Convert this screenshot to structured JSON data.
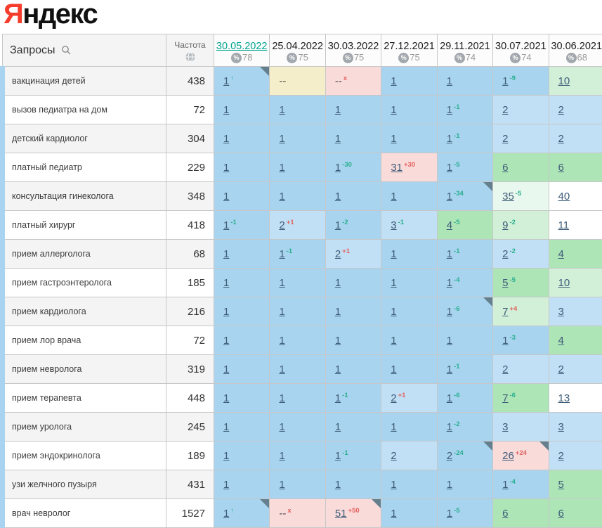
{
  "logo": {
    "part1": "Я",
    "part2": "ндекс"
  },
  "header": {
    "queries_label": "Запросы",
    "frequency_label": "Частота",
    "dates": [
      {
        "label": "30.05.2022",
        "coverage": "78",
        "active": true
      },
      {
        "label": "25.04.2022",
        "coverage": "75",
        "active": false
      },
      {
        "label": "30.03.2022",
        "coverage": "75",
        "active": false
      },
      {
        "label": "27.12.2021",
        "coverage": "75",
        "active": false
      },
      {
        "label": "29.11.2021",
        "coverage": "74",
        "active": false
      },
      {
        "label": "30.07.2021",
        "coverage": "74",
        "active": false
      },
      {
        "label": "30.06.2021",
        "coverage": "68",
        "active": false
      }
    ]
  },
  "colors": {
    "blue1": "#a9d4ef",
    "blue2": "#c1e0f5",
    "green1": "#aee5b7",
    "green2": "#d2f0d8",
    "mint": "#e9f8ee",
    "white": "#ffffff",
    "cream": "#f5eecb",
    "pink": "#f9dbda",
    "accent_teal": "#00a58e",
    "delta_up": "#2aaf8f",
    "delta_down": "#e2635f",
    "logo_red": "#f53d2d",
    "row_strip": "#a9d4f0"
  },
  "rows": [
    {
      "query": "вакцинация детей",
      "frequency": "438",
      "cells": [
        {
          "pos": "1",
          "delta": "↑",
          "dir": "up",
          "bg": "blue1",
          "marker": true
        },
        {
          "pos": "--",
          "bg": "cream"
        },
        {
          "pos": "--",
          "delta": "x",
          "dir": "down",
          "bg": "pink"
        },
        {
          "pos": "1",
          "bg": "blue1"
        },
        {
          "pos": "1",
          "bg": "blue1"
        },
        {
          "pos": "1",
          "delta": "-9",
          "dir": "up",
          "bg": "blue1"
        },
        {
          "pos": "10",
          "bg": "green2"
        }
      ]
    },
    {
      "query": "вызов педиатра на дом",
      "frequency": "72",
      "cells": [
        {
          "pos": "1",
          "bg": "blue1"
        },
        {
          "pos": "1",
          "bg": "blue1"
        },
        {
          "pos": "1",
          "bg": "blue1"
        },
        {
          "pos": "1",
          "bg": "blue1"
        },
        {
          "pos": "1",
          "delta": "-1",
          "dir": "up",
          "bg": "blue1"
        },
        {
          "pos": "2",
          "bg": "blue2"
        },
        {
          "pos": "2",
          "bg": "blue2"
        }
      ]
    },
    {
      "query": "детский кардиолог",
      "frequency": "304",
      "cells": [
        {
          "pos": "1",
          "bg": "blue1"
        },
        {
          "pos": "1",
          "bg": "blue1"
        },
        {
          "pos": "1",
          "bg": "blue1"
        },
        {
          "pos": "1",
          "bg": "blue1"
        },
        {
          "pos": "1",
          "delta": "-1",
          "dir": "up",
          "bg": "blue1"
        },
        {
          "pos": "2",
          "bg": "blue2"
        },
        {
          "pos": "2",
          "bg": "blue2"
        }
      ]
    },
    {
      "query": "платный педиатр",
      "frequency": "229",
      "cells": [
        {
          "pos": "1",
          "bg": "blue1"
        },
        {
          "pos": "1",
          "bg": "blue1"
        },
        {
          "pos": "1",
          "delta": "-30",
          "dir": "up",
          "bg": "blue1"
        },
        {
          "pos": "31",
          "delta": "+30",
          "dir": "down",
          "bg": "pink"
        },
        {
          "pos": "1",
          "delta": "-5",
          "dir": "up",
          "bg": "blue1"
        },
        {
          "pos": "6",
          "bg": "green1"
        },
        {
          "pos": "6",
          "bg": "green1"
        }
      ]
    },
    {
      "query": "консультация гинеколога",
      "frequency": "348",
      "cells": [
        {
          "pos": "1",
          "bg": "blue1"
        },
        {
          "pos": "1",
          "bg": "blue1"
        },
        {
          "pos": "1",
          "bg": "blue1"
        },
        {
          "pos": "1",
          "bg": "blue1"
        },
        {
          "pos": "1",
          "delta": "-34",
          "dir": "up",
          "bg": "blue1",
          "marker": true
        },
        {
          "pos": "35",
          "delta": "-5",
          "dir": "up",
          "bg": "mint"
        },
        {
          "pos": "40",
          "bg": "white"
        }
      ]
    },
    {
      "query": "платный хирург",
      "frequency": "418",
      "cells": [
        {
          "pos": "1",
          "delta": "-1",
          "dir": "up",
          "bg": "blue1"
        },
        {
          "pos": "2",
          "delta": "+1",
          "dir": "down",
          "bg": "blue2"
        },
        {
          "pos": "1",
          "delta": "-2",
          "dir": "up",
          "bg": "blue1"
        },
        {
          "pos": "3",
          "delta": "-1",
          "dir": "up",
          "bg": "blue2"
        },
        {
          "pos": "4",
          "delta": "-5",
          "dir": "up",
          "bg": "green1"
        },
        {
          "pos": "9",
          "delta": "-2",
          "dir": "up",
          "bg": "green2"
        },
        {
          "pos": "11",
          "bg": "white"
        }
      ]
    },
    {
      "query": "прием аллерголога",
      "frequency": "68",
      "cells": [
        {
          "pos": "1",
          "bg": "blue1"
        },
        {
          "pos": "1",
          "delta": "-1",
          "dir": "up",
          "bg": "blue1"
        },
        {
          "pos": "2",
          "delta": "+1",
          "dir": "down",
          "bg": "blue2"
        },
        {
          "pos": "1",
          "bg": "blue1"
        },
        {
          "pos": "1",
          "delta": "-1",
          "dir": "up",
          "bg": "blue1"
        },
        {
          "pos": "2",
          "delta": "-2",
          "dir": "up",
          "bg": "blue2"
        },
        {
          "pos": "4",
          "bg": "green1"
        }
      ]
    },
    {
      "query": "прием гастроэнтеролога",
      "frequency": "185",
      "cells": [
        {
          "pos": "1",
          "bg": "blue1"
        },
        {
          "pos": "1",
          "bg": "blue1"
        },
        {
          "pos": "1",
          "bg": "blue1"
        },
        {
          "pos": "1",
          "bg": "blue1"
        },
        {
          "pos": "1",
          "delta": "-4",
          "dir": "up",
          "bg": "blue1"
        },
        {
          "pos": "5",
          "delta": "-5",
          "dir": "up",
          "bg": "green1"
        },
        {
          "pos": "10",
          "bg": "green2"
        }
      ]
    },
    {
      "query": "прием кардиолога",
      "frequency": "216",
      "cells": [
        {
          "pos": "1",
          "bg": "blue1"
        },
        {
          "pos": "1",
          "bg": "blue1"
        },
        {
          "pos": "1",
          "bg": "blue1"
        },
        {
          "pos": "1",
          "bg": "blue1"
        },
        {
          "pos": "1",
          "delta": "-6",
          "dir": "up",
          "bg": "blue1",
          "marker": true
        },
        {
          "pos": "7",
          "delta": "+4",
          "dir": "down",
          "bg": "green2"
        },
        {
          "pos": "3",
          "bg": "blue2"
        }
      ]
    },
    {
      "query": "прием лор врача",
      "frequency": "72",
      "cells": [
        {
          "pos": "1",
          "bg": "blue1"
        },
        {
          "pos": "1",
          "bg": "blue1"
        },
        {
          "pos": "1",
          "bg": "blue1"
        },
        {
          "pos": "1",
          "bg": "blue1"
        },
        {
          "pos": "1",
          "bg": "blue1"
        },
        {
          "pos": "1",
          "delta": "-3",
          "dir": "up",
          "bg": "blue1"
        },
        {
          "pos": "4",
          "bg": "green1"
        }
      ]
    },
    {
      "query": "прием невролога",
      "frequency": "319",
      "cells": [
        {
          "pos": "1",
          "bg": "blue1"
        },
        {
          "pos": "1",
          "bg": "blue1"
        },
        {
          "pos": "1",
          "bg": "blue1"
        },
        {
          "pos": "1",
          "bg": "blue1"
        },
        {
          "pos": "1",
          "delta": "-1",
          "dir": "up",
          "bg": "blue1"
        },
        {
          "pos": "2",
          "bg": "blue2"
        },
        {
          "pos": "2",
          "bg": "blue2"
        }
      ]
    },
    {
      "query": "прием терапевта",
      "frequency": "448",
      "cells": [
        {
          "pos": "1",
          "bg": "blue1"
        },
        {
          "pos": "1",
          "bg": "blue1"
        },
        {
          "pos": "1",
          "delta": "-1",
          "dir": "up",
          "bg": "blue1"
        },
        {
          "pos": "2",
          "delta": "+1",
          "dir": "down",
          "bg": "blue2"
        },
        {
          "pos": "1",
          "delta": "-6",
          "dir": "up",
          "bg": "blue1"
        },
        {
          "pos": "7",
          "delta": "-6",
          "dir": "up",
          "bg": "green1"
        },
        {
          "pos": "13",
          "bg": "white"
        }
      ]
    },
    {
      "query": "прием уролога",
      "frequency": "245",
      "cells": [
        {
          "pos": "1",
          "bg": "blue1"
        },
        {
          "pos": "1",
          "bg": "blue1"
        },
        {
          "pos": "1",
          "bg": "blue1"
        },
        {
          "pos": "1",
          "bg": "blue1"
        },
        {
          "pos": "1",
          "delta": "-2",
          "dir": "up",
          "bg": "blue1"
        },
        {
          "pos": "3",
          "bg": "blue2"
        },
        {
          "pos": "3",
          "bg": "blue2"
        }
      ]
    },
    {
      "query": "прием эндокринолога",
      "frequency": "189",
      "cells": [
        {
          "pos": "1",
          "bg": "blue1"
        },
        {
          "pos": "1",
          "bg": "blue1"
        },
        {
          "pos": "1",
          "delta": "-1",
          "dir": "up",
          "bg": "blue1"
        },
        {
          "pos": "2",
          "bg": "blue2"
        },
        {
          "pos": "2",
          "delta": "-24",
          "dir": "up",
          "bg": "blue1",
          "marker": true
        },
        {
          "pos": "26",
          "delta": "+24",
          "dir": "down",
          "bg": "pink",
          "marker": true
        },
        {
          "pos": "2",
          "bg": "blue2"
        }
      ]
    },
    {
      "query": "узи желчного пузыря",
      "frequency": "431",
      "cells": [
        {
          "pos": "1",
          "bg": "blue1"
        },
        {
          "pos": "1",
          "bg": "blue1"
        },
        {
          "pos": "1",
          "bg": "blue1"
        },
        {
          "pos": "1",
          "bg": "blue1"
        },
        {
          "pos": "1",
          "bg": "blue1"
        },
        {
          "pos": "1",
          "delta": "-4",
          "dir": "up",
          "bg": "blue1"
        },
        {
          "pos": "5",
          "bg": "green1"
        }
      ]
    },
    {
      "query": "врач невролог",
      "frequency": "1527",
      "cells": [
        {
          "pos": "1",
          "delta": "↑",
          "dir": "up",
          "bg": "blue1",
          "marker": true
        },
        {
          "pos": "--",
          "delta": "x",
          "dir": "down",
          "bg": "pink"
        },
        {
          "pos": "51",
          "delta": "+50",
          "dir": "down",
          "bg": "pink",
          "marker": true
        },
        {
          "pos": "1",
          "bg": "blue1"
        },
        {
          "pos": "1",
          "delta": "-5",
          "dir": "up",
          "bg": "blue1"
        },
        {
          "pos": "6",
          "bg": "green1"
        },
        {
          "pos": "6",
          "bg": "green1"
        }
      ]
    }
  ]
}
